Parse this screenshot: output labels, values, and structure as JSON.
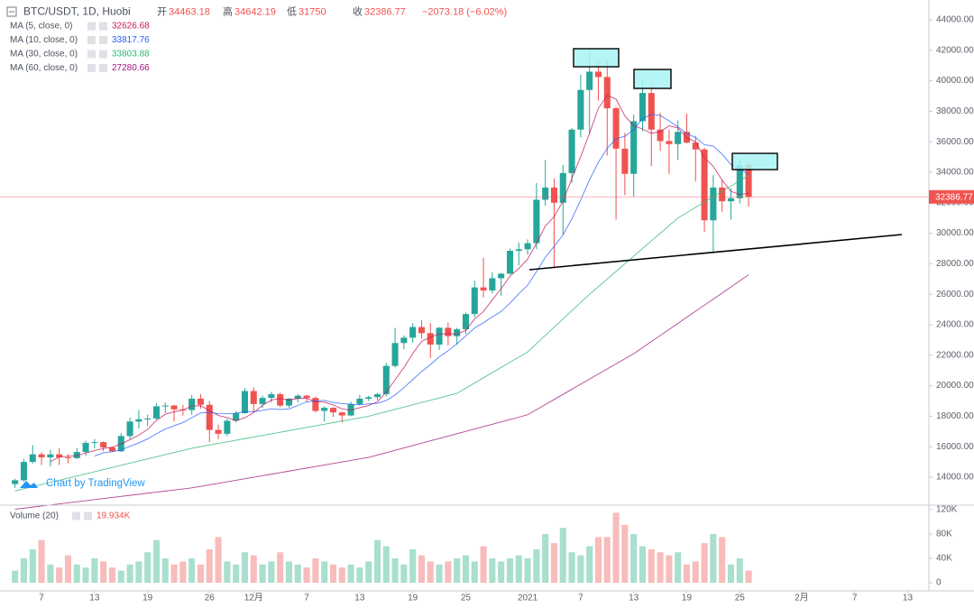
{
  "chart_data": {
    "type": "candlestick",
    "title": "BTC/USDT, 1D, Huobi",
    "ohlc_labels": {
      "open": "开",
      "high": "高",
      "low": "低",
      "close": "收"
    },
    "change": "−2073.18 (−6.02%)",
    "watermark": "Chart by TradingView",
    "up_color": "#26a69a",
    "down_color": "#ef5350",
    "x": [
      0,
      1,
      2,
      3,
      4,
      5,
      6,
      7,
      8,
      9,
      10,
      11,
      12,
      13,
      14,
      15,
      16,
      17,
      18,
      19,
      20,
      21,
      22,
      23,
      24,
      25,
      26,
      27,
      28,
      29,
      30,
      31,
      32,
      33,
      34,
      35,
      36,
      37,
      38,
      39,
      40,
      41,
      42,
      43,
      44,
      45,
      46,
      47,
      48,
      49,
      50,
      51,
      52,
      53,
      54,
      55,
      56,
      57,
      58,
      59,
      60,
      61,
      62,
      63,
      64,
      65,
      66,
      67,
      68,
      69,
      70,
      71,
      72,
      73,
      74,
      75,
      76,
      77,
      78,
      79,
      80,
      81,
      82,
      83
    ],
    "xlim": [
      -1.7,
      103.4
    ],
    "xticks": [
      {
        "value": 3,
        "label": "7"
      },
      {
        "value": 9,
        "label": "13"
      },
      {
        "value": 15,
        "label": "19"
      },
      {
        "value": 22,
        "label": "26"
      },
      {
        "value": 27,
        "label": "12月"
      },
      {
        "value": 33,
        "label": "7"
      },
      {
        "value": 39,
        "label": "13"
      },
      {
        "value": 45,
        "label": "19"
      },
      {
        "value": 51,
        "label": "25"
      },
      {
        "value": 58,
        "label": "2021"
      },
      {
        "value": 64,
        "label": "7"
      },
      {
        "value": 70,
        "label": "13"
      },
      {
        "value": 76,
        "label": "19"
      },
      {
        "value": 82,
        "label": "25"
      },
      {
        "value": 89,
        "label": "2月"
      },
      {
        "value": 95,
        "label": "7"
      },
      {
        "value": 101,
        "label": "13"
      }
    ],
    "open": [
      13550,
      13800,
      15000,
      15500,
      15300,
      15500,
      15300,
      15250,
      15650,
      16250,
      16300,
      15950,
      15700,
      16700,
      17650,
      17800,
      17850,
      18650,
      18700,
      18450,
      18400,
      19150,
      18750,
      17100,
      16850,
      17700,
      18200,
      19650,
      18800,
      19200,
      19450,
      18700,
      19150,
      19350,
      19200,
      18350,
      18550,
      18250,
      18050,
      18800,
      19150,
      19250,
      19450,
      21300,
      22800,
      23150,
      23850,
      23450,
      22700,
      23800,
      23250,
      23700,
      24700,
      26450,
      26250,
      27050,
      27350,
      28850,
      28950,
      29350,
      32200,
      33000,
      32000,
      33950,
      36800,
      39400,
      40600,
      40250,
      38200,
      35550,
      33900,
      37350,
      39200,
      36800,
      36050,
      35850,
      36650,
      35950,
      35500,
      30850,
      33000,
      32100,
      32300,
      34463.18
    ],
    "high": [
      13900,
      15200,
      16100,
      15650,
      15800,
      15900,
      15500,
      15900,
      16400,
      16500,
      16350,
      16000,
      16900,
      17900,
      18400,
      18100,
      18850,
      18900,
      18750,
      18750,
      19400,
      19450,
      19000,
      17450,
      17850,
      18350,
      19850,
      19900,
      19350,
      19600,
      19550,
      19200,
      19450,
      19400,
      19300,
      18650,
      18600,
      18300,
      18950,
      19400,
      19350,
      19550,
      21500,
      23800,
      23300,
      24100,
      24300,
      24100,
      23850,
      24150,
      23800,
      24800,
      26900,
      28400,
      27450,
      27400,
      29000,
      29400,
      29600,
      33300,
      34800,
      33600,
      34500,
      36900,
      40400,
      41950,
      41400,
      41400,
      38300,
      36600,
      37800,
      40100,
      39700,
      37900,
      36800,
      37400,
      37850,
      36400,
      35600,
      33800,
      33500,
      32950,
      34900,
      34642.19
    ],
    "low": [
      13300,
      13700,
      14900,
      14800,
      14700,
      14800,
      14900,
      15200,
      15400,
      15900,
      15700,
      15650,
      15650,
      16500,
      17200,
      17350,
      17800,
      18200,
      17650,
      18050,
      18100,
      18500,
      16300,
      16500,
      16700,
      17600,
      18150,
      18250,
      18550,
      18900,
      18600,
      18550,
      18900,
      18900,
      18250,
      17650,
      17950,
      17600,
      18000,
      18700,
      19000,
      19050,
      19300,
      21200,
      22400,
      22800,
      23100,
      21800,
      22350,
      22650,
      22700,
      23400,
      24500,
      25800,
      26050,
      25900,
      27300,
      27900,
      28600,
      28950,
      31800,
      27700,
      29900,
      33300,
      36300,
      36500,
      38700,
      35100,
      30900,
      32500,
      32400,
      36700,
      34400,
      35400,
      33900,
      34800,
      35900,
      33400,
      30100,
      28800,
      31400,
      30900,
      31950,
      31750
    ],
    "close": [
      13800,
      15000,
      15500,
      15300,
      15500,
      15300,
      15250,
      15650,
      16250,
      16300,
      15950,
      15700,
      16700,
      17650,
      17800,
      17850,
      18650,
      18700,
      18450,
      18400,
      19150,
      18750,
      17100,
      16850,
      17700,
      18200,
      19650,
      18800,
      19200,
      19450,
      18700,
      19150,
      19350,
      19200,
      18350,
      18550,
      18250,
      18050,
      18800,
      19150,
      19250,
      19450,
      21300,
      22800,
      23150,
      23850,
      23450,
      22700,
      23800,
      23250,
      23700,
      24700,
      26450,
      26250,
      27050,
      27350,
      28850,
      28950,
      29350,
      32200,
      33000,
      32000,
      33950,
      36800,
      39400,
      40600,
      40250,
      38200,
      35550,
      33900,
      37350,
      39200,
      36800,
      36050,
      35850,
      36650,
      35950,
      35500,
      30850,
      33000,
      32100,
      32300,
      34463.18,
      32386.77
    ],
    "ylim": [
      12166,
      45302
    ],
    "yticks": [
      {
        "value": 14000,
        "label": "14000.00"
      },
      {
        "value": 16000,
        "label": "16000.00"
      },
      {
        "value": 18000,
        "label": "18000.00"
      },
      {
        "value": 20000,
        "label": "20000.00"
      },
      {
        "value": 22000,
        "label": "22000.00"
      },
      {
        "value": 24000,
        "label": "24000.00"
      },
      {
        "value": 26000,
        "label": "26000.00"
      },
      {
        "value": 28000,
        "label": "28000.00"
      },
      {
        "value": 30000,
        "label": "30000.00"
      },
      {
        "value": 32000,
        "label": "32000.00"
      },
      {
        "value": 34000,
        "label": "34000.00"
      },
      {
        "value": 36000,
        "label": "36000.00"
      },
      {
        "value": 38000,
        "label": "38000.00"
      },
      {
        "value": 40000,
        "label": "40000.00"
      },
      {
        "value": 42000,
        "label": "42000.00"
      },
      {
        "value": 44000,
        "label": "44000.00"
      }
    ],
    "series": [
      {
        "name": "MA (5, close, 0)",
        "color": "#c2185b",
        "values": [
          null,
          null,
          null,
          null,
          15020,
          15320,
          15370,
          15400,
          15590,
          15750,
          15880,
          15970,
          16180,
          16460,
          16760,
          17140,
          17730,
          18130,
          18290,
          18410,
          18670,
          18690,
          18370,
          18050,
          17910,
          17720,
          17900,
          18240,
          18710,
          19060,
          19160,
          19060,
          19170,
          19170,
          18950,
          18920,
          18740,
          18480,
          18400,
          18560,
          18700,
          18940,
          19590,
          20390,
          21190,
          22110,
          22910,
          23190,
          23390,
          23410,
          23380,
          23630,
          24380,
          24870,
          25630,
          26360,
          27190,
          27690,
          28310,
          29340,
          30470,
          31100,
          32100,
          33590,
          35030,
          36550,
          38200,
          39050,
          38800,
          37700,
          37050,
          36840,
          36560,
          36660,
          37050,
          36910,
          36260,
          36000,
          34960,
          34390,
          33480,
          32750,
          32540,
          32626.68
        ]
      },
      {
        "name": "MA (10, close, 0)",
        "color": "#2962ff",
        "values": [
          null,
          null,
          null,
          null,
          null,
          null,
          null,
          null,
          null,
          15385,
          15600,
          15670,
          15790,
          16025,
          16255,
          16510,
          16850,
          17155,
          17375,
          17585,
          17905,
          18210,
          18250,
          18170,
          18160,
          18195,
          18295,
          18305,
          18380,
          18485,
          18440,
          18480,
          18705,
          18940,
          19005,
          19040,
          18900,
          18825,
          18785,
          18755,
          18810,
          18840,
          19035,
          19395,
          19875,
          20405,
          20925,
          21390,
          21890,
          22300,
          22745,
          23270,
          23785,
          24130,
          24520,
          24870,
          25410,
          26035,
          26590,
          27485,
          28415,
          29145,
          29895,
          30950,
          32185,
          33510,
          34650,
          35575,
          36195,
          36365,
          36800,
          37520,
          37805,
          37730,
          37375,
          36980,
          36550,
          36280,
          35810,
          35720,
          35195,
          34505,
          34270,
          33817.76
        ]
      },
      {
        "name": "MA (30, close, 0)",
        "color": "#2eb872",
        "values": [
          13100,
          13240,
          13380,
          13520,
          13660,
          13800,
          13940,
          14080,
          14220,
          14360,
          14500,
          14640,
          14780,
          14920,
          15060,
          15200,
          15340,
          15480,
          15620,
          15760,
          15900,
          16005,
          16110,
          16215,
          16320,
          16425,
          16530,
          16635,
          16740,
          16845,
          16950,
          17055,
          17160,
          17265,
          17370,
          17475,
          17580,
          17685,
          17790,
          17895,
          18000,
          18150,
          18300,
          18450,
          18600,
          18750,
          18900,
          19050,
          19200,
          19350,
          19500,
          19840,
          20180,
          20520,
          20860,
          21200,
          21540,
          21880,
          22220,
          22760,
          23300,
          23840,
          24380,
          24920,
          25460,
          26000,
          26500,
          27000,
          27500,
          28000,
          28500,
          29000,
          29500,
          30000,
          30500,
          31000,
          31350,
          31700,
          32050,
          32400,
          32750,
          33100,
          33450,
          33803.88
        ]
      },
      {
        "name": "MA (60, close, 0)",
        "color": "#a0157a",
        "values": [
          11900,
          11970,
          12040,
          12110,
          12180,
          12250,
          12320,
          12390,
          12460,
          12530,
          12600,
          12670,
          12740,
          12810,
          12880,
          12950,
          13020,
          13090,
          13160,
          13230,
          13300,
          13400,
          13500,
          13600,
          13700,
          13800,
          13900,
          14000,
          14100,
          14200,
          14300,
          14400,
          14500,
          14600,
          14700,
          14800,
          14900,
          15000,
          15100,
          15200,
          15300,
          15455,
          15610,
          15765,
          15920,
          16075,
          16230,
          16385,
          16540,
          16695,
          16850,
          17005,
          17160,
          17315,
          17470,
          17625,
          17780,
          17935,
          18100,
          18433,
          18766,
          19100,
          19433,
          19766,
          20100,
          20433,
          20766,
          21100,
          21433,
          21766,
          22100,
          22498,
          22896,
          23294,
          23692,
          24090,
          24488,
          24886,
          25284,
          25682,
          26080,
          26478,
          26876,
          27280.66
        ]
      }
    ],
    "volume": {
      "name": "Volume (20)",
      "value_label": "19.934K",
      "up_color": "#a8dfcd",
      "down_color": "#f7bcbb",
      "ylim": [
        -13333,
        127407
      ],
      "yticks": [
        0,
        {
          "value": 40000,
          "label": "40K"
        },
        {
          "value": 80000,
          "label": "80K"
        },
        {
          "value": 120000,
          "label": "120K"
        }
      ],
      "values": [
        20000,
        40000,
        55000,
        70000,
        30000,
        25000,
        45000,
        30000,
        25000,
        40000,
        35000,
        25000,
        20000,
        30000,
        35000,
        50000,
        70000,
        40000,
        30000,
        35000,
        40000,
        30000,
        55000,
        75000,
        35000,
        30000,
        50000,
        45000,
        30000,
        35000,
        50000,
        35000,
        30000,
        25000,
        40000,
        35000,
        30000,
        25000,
        30000,
        25000,
        35000,
        70000,
        60000,
        40000,
        30000,
        55000,
        45000,
        35000,
        30000,
        35000,
        40000,
        45000,
        35000,
        60000,
        40000,
        35000,
        40000,
        45000,
        40000,
        55000,
        80000,
        65000,
        90000,
        50000,
        45000,
        60000,
        75000,
        75000,
        115000,
        95000,
        80000,
        60000,
        55000,
        50000,
        45000,
        50000,
        30000,
        35000,
        65000,
        80000,
        75000,
        30000,
        40000,
        19934
      ]
    }
  }
}
